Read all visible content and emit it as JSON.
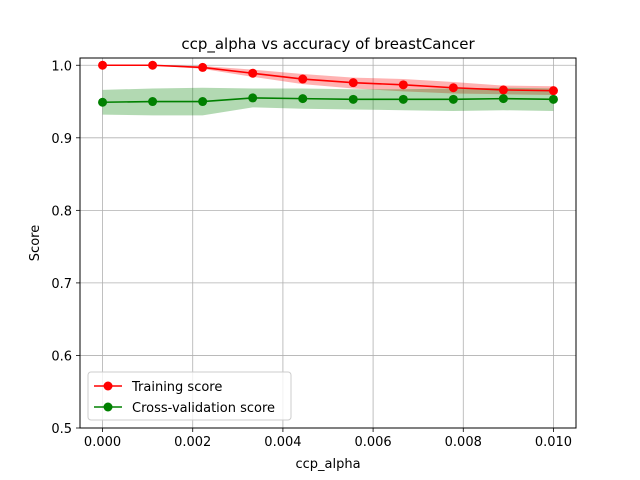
{
  "chart_data": {
    "type": "line",
    "title": "ccp_alpha vs accuracy of breastCancer",
    "xlabel": "ccp_alpha",
    "ylabel": "Score",
    "xlim": [
      -0.0005,
      0.0105
    ],
    "ylim": [
      0.5,
      1.01
    ],
    "xticks": [
      0.0,
      0.002,
      0.004,
      0.006,
      0.008,
      0.01
    ],
    "xtick_labels": [
      "0.000",
      "0.002",
      "0.004",
      "0.006",
      "0.008",
      "0.010"
    ],
    "yticks": [
      0.5,
      0.6,
      0.7,
      0.8,
      0.9,
      1.0
    ],
    "ytick_labels": [
      "0.5",
      "0.6",
      "0.7",
      "0.8",
      "0.9",
      "1.0"
    ],
    "grid": true,
    "legend_position": "lower-left",
    "x": [
      0.0,
      0.00111,
      0.00222,
      0.00333,
      0.00444,
      0.00556,
      0.00667,
      0.00778,
      0.00889,
      0.01
    ],
    "series": [
      {
        "name": "Training score",
        "color": "#ff0000",
        "band_color": "#ff0000",
        "values": [
          1.0,
          1.0,
          0.997,
          0.989,
          0.981,
          0.976,
          0.973,
          0.969,
          0.966,
          0.965
        ],
        "lower": [
          1.0,
          1.0,
          0.995,
          0.984,
          0.974,
          0.968,
          0.964,
          0.961,
          0.96,
          0.959
        ],
        "upper": [
          1.0,
          1.0,
          0.999,
          0.994,
          0.988,
          0.983,
          0.981,
          0.977,
          0.972,
          0.971
        ]
      },
      {
        "name": "Cross-validation score",
        "color": "#008000",
        "band_color": "#008000",
        "values": [
          0.949,
          0.95,
          0.95,
          0.955,
          0.954,
          0.953,
          0.953,
          0.953,
          0.954,
          0.953
        ],
        "lower": [
          0.932,
          0.931,
          0.931,
          0.942,
          0.94,
          0.939,
          0.938,
          0.937,
          0.938,
          0.937
        ],
        "upper": [
          0.966,
          0.968,
          0.969,
          0.968,
          0.968,
          0.967,
          0.967,
          0.968,
          0.969,
          0.968
        ]
      }
    ]
  }
}
